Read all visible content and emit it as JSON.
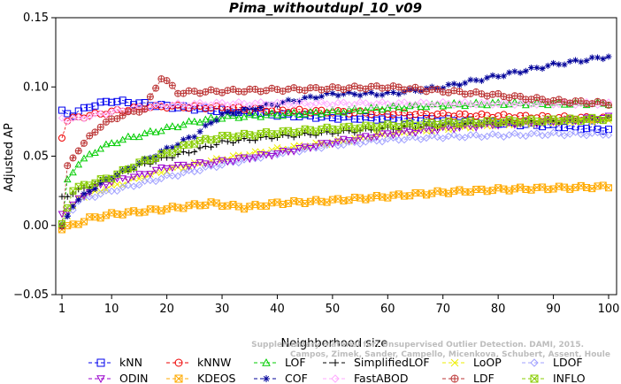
{
  "chart_data": {
    "type": "line",
    "title": "Pima_withoutdupl_10_v09",
    "xlabel": "Neighborhood size",
    "ylabel": "Adjusted AP",
    "xlim": [
      1,
      100
    ],
    "ylim": [
      -0.05,
      0.15
    ],
    "x_ticks": [
      1,
      10,
      20,
      30,
      40,
      50,
      60,
      70,
      80,
      90,
      100
    ],
    "y_ticks": [
      -0.05,
      0.0,
      0.05,
      0.1,
      0.15
    ],
    "y_tick_labels": [
      "−0.05",
      "0.00",
      "0.05",
      "0.10",
      "0.15"
    ],
    "legend_position": "bottom",
    "watermark": [
      "Supplementary material for: Unsupervised Outlier Detection. DAMI, 2015.",
      "Campos, Zimek, Sander, Campello, Micenkova, Schubert, Assent, Houle"
    ],
    "series": [
      {
        "name": "kNN",
        "color": "#0000ee",
        "marker": "square",
        "anchors": [
          [
            1,
            0.082
          ],
          [
            3,
            0.08
          ],
          [
            6,
            0.086
          ],
          [
            10,
            0.09
          ],
          [
            15,
            0.088
          ],
          [
            20,
            0.086
          ],
          [
            30,
            0.083
          ],
          [
            40,
            0.08
          ],
          [
            50,
            0.078
          ],
          [
            60,
            0.077
          ],
          [
            70,
            0.076
          ],
          [
            80,
            0.074
          ],
          [
            90,
            0.072
          ],
          [
            100,
            0.069
          ]
        ]
      },
      {
        "name": "kNNW",
        "color": "#ee0000",
        "marker": "circle",
        "anchors": [
          [
            1,
            0.064
          ],
          [
            2,
            0.076
          ],
          [
            4,
            0.078
          ],
          [
            10,
            0.082
          ],
          [
            15,
            0.085
          ],
          [
            20,
            0.086
          ],
          [
            30,
            0.085
          ],
          [
            40,
            0.083
          ],
          [
            50,
            0.082
          ],
          [
            60,
            0.081
          ],
          [
            70,
            0.08
          ],
          [
            80,
            0.079
          ],
          [
            90,
            0.078
          ],
          [
            100,
            0.077
          ]
        ]
      },
      {
        "name": "LOF",
        "color": "#00cc00",
        "marker": "triangle",
        "anchors": [
          [
            1,
            0.0
          ],
          [
            2,
            0.032
          ],
          [
            4,
            0.045
          ],
          [
            8,
            0.056
          ],
          [
            12,
            0.062
          ],
          [
            16,
            0.066
          ],
          [
            20,
            0.07
          ],
          [
            25,
            0.075
          ],
          [
            30,
            0.078
          ],
          [
            40,
            0.08
          ],
          [
            50,
            0.082
          ],
          [
            60,
            0.085
          ],
          [
            70,
            0.087
          ],
          [
            80,
            0.088
          ],
          [
            90,
            0.088
          ],
          [
            100,
            0.088
          ]
        ]
      },
      {
        "name": "SimplifiedLOF",
        "color": "#000000",
        "marker": "plus",
        "anchors": [
          [
            1,
            0.02
          ],
          [
            4,
            0.025
          ],
          [
            10,
            0.035
          ],
          [
            15,
            0.043
          ],
          [
            20,
            0.049
          ],
          [
            25,
            0.054
          ],
          [
            30,
            0.06
          ],
          [
            40,
            0.064
          ],
          [
            50,
            0.067
          ],
          [
            60,
            0.07
          ],
          [
            70,
            0.072
          ],
          [
            80,
            0.074
          ],
          [
            90,
            0.075
          ],
          [
            100,
            0.077
          ]
        ]
      },
      {
        "name": "LoOP",
        "color": "#eeee00",
        "marker": "x",
        "anchors": [
          [
            1,
            0.0
          ],
          [
            4,
            0.02
          ],
          [
            10,
            0.028
          ],
          [
            20,
            0.04
          ],
          [
            30,
            0.048
          ],
          [
            40,
            0.055
          ],
          [
            50,
            0.06
          ],
          [
            60,
            0.066
          ],
          [
            70,
            0.07
          ],
          [
            80,
            0.073
          ],
          [
            90,
            0.075
          ],
          [
            100,
            0.076
          ]
        ]
      },
      {
        "name": "LDOF",
        "color": "#a0a0ff",
        "marker": "diamond",
        "anchors": [
          [
            1,
            0.0
          ],
          [
            4,
            0.018
          ],
          [
            10,
            0.025
          ],
          [
            20,
            0.035
          ],
          [
            30,
            0.044
          ],
          [
            40,
            0.052
          ],
          [
            50,
            0.058
          ],
          [
            60,
            0.062
          ],
          [
            70,
            0.064
          ],
          [
            80,
            0.065
          ],
          [
            90,
            0.066
          ],
          [
            100,
            0.066
          ]
        ]
      },
      {
        "name": "ODIN",
        "color": "#9900cc",
        "marker": "triangle-down",
        "anchors": [
          [
            1,
            0.008
          ],
          [
            3,
            0.015
          ],
          [
            6,
            0.025
          ],
          [
            10,
            0.032
          ],
          [
            15,
            0.036
          ],
          [
            20,
            0.042
          ],
          [
            30,
            0.046
          ],
          [
            40,
            0.052
          ],
          [
            50,
            0.06
          ],
          [
            60,
            0.066
          ],
          [
            70,
            0.07
          ],
          [
            80,
            0.073
          ],
          [
            90,
            0.075
          ],
          [
            100,
            0.078
          ]
        ]
      },
      {
        "name": "KDEOS",
        "color": "#ffaa00",
        "marker": "square-x",
        "anchors": [
          [
            1,
            -0.002
          ],
          [
            3,
            0.0
          ],
          [
            6,
            0.005
          ],
          [
            10,
            0.008
          ],
          [
            15,
            0.01
          ],
          [
            20,
            0.012
          ],
          [
            28,
            0.016
          ],
          [
            34,
            0.013
          ],
          [
            40,
            0.016
          ],
          [
            50,
            0.018
          ],
          [
            60,
            0.021
          ],
          [
            70,
            0.024
          ],
          [
            80,
            0.026
          ],
          [
            90,
            0.027
          ],
          [
            100,
            0.028
          ]
        ]
      },
      {
        "name": "COF",
        "color": "#000099",
        "marker": "asterisk",
        "anchors": [
          [
            1,
            -0.002
          ],
          [
            3,
            0.015
          ],
          [
            6,
            0.025
          ],
          [
            10,
            0.035
          ],
          [
            15,
            0.045
          ],
          [
            20,
            0.055
          ],
          [
            25,
            0.065
          ],
          [
            30,
            0.08
          ],
          [
            40,
            0.088
          ],
          [
            50,
            0.095
          ],
          [
            60,
            0.095
          ],
          [
            70,
            0.1
          ],
          [
            80,
            0.108
          ],
          [
            90,
            0.116
          ],
          [
            100,
            0.122
          ]
        ]
      },
      {
        "name": "FastABOD",
        "color": "#ffaaff",
        "marker": "diamond",
        "anchors": [
          [
            1,
            0.078
          ],
          [
            2,
            0.076
          ],
          [
            5,
            0.078
          ],
          [
            10,
            0.082
          ],
          [
            15,
            0.085
          ],
          [
            20,
            0.087
          ],
          [
            30,
            0.088
          ],
          [
            40,
            0.088
          ],
          [
            50,
            0.088
          ],
          [
            60,
            0.088
          ],
          [
            70,
            0.088
          ],
          [
            80,
            0.088
          ],
          [
            90,
            0.088
          ],
          [
            100,
            0.088
          ]
        ]
      },
      {
        "name": "LDF",
        "color": "#bb3333",
        "marker": "circle-plus",
        "anchors": [
          [
            1,
            0.0
          ],
          [
            2,
            0.042
          ],
          [
            4,
            0.055
          ],
          [
            8,
            0.072
          ],
          [
            12,
            0.08
          ],
          [
            16,
            0.084
          ],
          [
            19,
            0.107
          ],
          [
            20,
            0.104
          ],
          [
            22,
            0.096
          ],
          [
            30,
            0.097
          ],
          [
            40,
            0.098
          ],
          [
            50,
            0.099
          ],
          [
            60,
            0.1
          ],
          [
            70,
            0.097
          ],
          [
            80,
            0.094
          ],
          [
            90,
            0.09
          ],
          [
            100,
            0.088
          ]
        ]
      },
      {
        "name": "INFLO",
        "color": "#88cc00",
        "marker": "square-x",
        "anchors": [
          [
            1,
            0.0
          ],
          [
            3,
            0.026
          ],
          [
            6,
            0.03
          ],
          [
            10,
            0.035
          ],
          [
            15,
            0.045
          ],
          [
            20,
            0.052
          ],
          [
            25,
            0.06
          ],
          [
            30,
            0.064
          ],
          [
            40,
            0.067
          ],
          [
            50,
            0.07
          ],
          [
            60,
            0.072
          ],
          [
            70,
            0.074
          ],
          [
            80,
            0.075
          ],
          [
            90,
            0.076
          ],
          [
            100,
            0.077
          ]
        ]
      }
    ]
  }
}
